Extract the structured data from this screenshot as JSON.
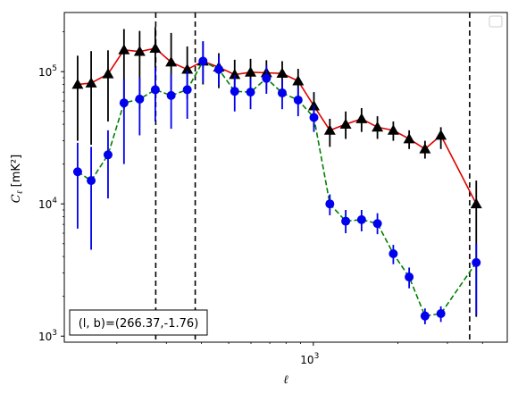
{
  "chart_data": {
    "type": "scatter",
    "x_scale": "log",
    "y_scale": "log",
    "xlim": [
      130,
      4900
    ],
    "ylim": [
      900,
      280000
    ],
    "xlabel": "ℓ",
    "ylabel_main": "C",
    "ylabel_sub": "ℓ",
    "ylabel_unit": "[mK²]",
    "x_ticks": [
      {
        "value": 1000,
        "base": "10",
        "exp": "3"
      }
    ],
    "y_ticks": [
      {
        "value": 1000,
        "base": "10",
        "exp": "3"
      },
      {
        "value": 10000,
        "base": "10",
        "exp": "4"
      },
      {
        "value": 100000,
        "base": "10",
        "exp": "5"
      }
    ],
    "grid": false,
    "legend": {
      "placement": "top-right",
      "entries": []
    },
    "annotation": "(l, b)=(266.37,-1.76)",
    "annotation_placement": "bottom-left",
    "vlines": [
      {
        "x": 275,
        "style": "dashed",
        "color": "#000000"
      },
      {
        "x": 380,
        "style": "dashed",
        "color": "#000000"
      },
      {
        "x": 3600,
        "style": "dashed",
        "color": "#000000"
      }
    ],
    "series": [
      {
        "marker": "triangle",
        "color": "#000000",
        "line_color": "#e00000",
        "line_style": "solid",
        "errorbar_color": "#000000",
        "points": [
          {
            "x": 145,
            "y": 80000,
            "lo": 30000,
            "hi": 132000
          },
          {
            "x": 162,
            "y": 82000,
            "lo": 28000,
            "hi": 143000
          },
          {
            "x": 186,
            "y": 96000,
            "lo": 42000,
            "hi": 145000
          },
          {
            "x": 212,
            "y": 146000,
            "lo": 52000,
            "hi": 210000
          },
          {
            "x": 241,
            "y": 142000,
            "lo": 52000,
            "hi": 203000
          },
          {
            "x": 274,
            "y": 150000,
            "lo": 60000,
            "hi": 218000
          },
          {
            "x": 312,
            "y": 118000,
            "lo": 62000,
            "hi": 196000
          },
          {
            "x": 356,
            "y": 104000,
            "lo": 62000,
            "hi": 155000
          },
          {
            "x": 405,
            "y": 120000,
            "lo": 80000,
            "hi": 168000
          },
          {
            "x": 461,
            "y": 108000,
            "lo": 75000,
            "hi": 138000
          },
          {
            "x": 525,
            "y": 95000,
            "lo": 66000,
            "hi": 123000
          },
          {
            "x": 598,
            "y": 99000,
            "lo": 70000,
            "hi": 125000
          },
          {
            "x": 681,
            "y": 98000,
            "lo": 73000,
            "hi": 122000
          },
          {
            "x": 775,
            "y": 97000,
            "lo": 72000,
            "hi": 120000
          },
          {
            "x": 883,
            "y": 85000,
            "lo": 63000,
            "hi": 105000
          },
          {
            "x": 1005,
            "y": 55000,
            "lo": 38000,
            "hi": 70000
          },
          {
            "x": 1145,
            "y": 36000,
            "lo": 27000,
            "hi": 44000
          },
          {
            "x": 1304,
            "y": 40000,
            "lo": 31000,
            "hi": 50000
          },
          {
            "x": 1485,
            "y": 44000,
            "lo": 35000,
            "hi": 53000
          },
          {
            "x": 1691,
            "y": 38000,
            "lo": 31000,
            "hi": 46000
          },
          {
            "x": 1926,
            "y": 36000,
            "lo": 30000,
            "hi": 42000
          },
          {
            "x": 2193,
            "y": 31000,
            "lo": 26000,
            "hi": 36000
          },
          {
            "x": 2497,
            "y": 26000,
            "lo": 22000,
            "hi": 30000
          },
          {
            "x": 2844,
            "y": 33000,
            "lo": 26000,
            "hi": 38000
          },
          {
            "x": 3800,
            "y": 10000,
            "lo": 1400,
            "hi": 15000
          }
        ]
      },
      {
        "marker": "circle",
        "color": "#0000ee",
        "line_color": "#008000",
        "line_style": "dashed",
        "errorbar_color": "#0000ee",
        "points": [
          {
            "x": 145,
            "y": 17500,
            "lo": 6500,
            "hi": 29000
          },
          {
            "x": 162,
            "y": 15000,
            "lo": 4500,
            "hi": 27000
          },
          {
            "x": 186,
            "y": 23500,
            "lo": 11000,
            "hi": 36000
          },
          {
            "x": 212,
            "y": 58000,
            "lo": 20000,
            "hi": 88000
          },
          {
            "x": 241,
            "y": 62000,
            "lo": 33000,
            "hi": 90000
          },
          {
            "x": 274,
            "y": 73000,
            "lo": 42000,
            "hi": 108000
          },
          {
            "x": 312,
            "y": 66000,
            "lo": 37000,
            "hi": 96000
          },
          {
            "x": 356,
            "y": 73000,
            "lo": 44000,
            "hi": 102000
          },
          {
            "x": 405,
            "y": 120000,
            "lo": 83000,
            "hi": 170000
          },
          {
            "x": 461,
            "y": 104000,
            "lo": 78000,
            "hi": 132000
          },
          {
            "x": 525,
            "y": 71000,
            "lo": 50000,
            "hi": 94000
          },
          {
            "x": 598,
            "y": 70000,
            "lo": 52000,
            "hi": 90000
          },
          {
            "x": 681,
            "y": 89000,
            "lo": 68000,
            "hi": 112000
          },
          {
            "x": 775,
            "y": 69000,
            "lo": 52000,
            "hi": 88000
          },
          {
            "x": 883,
            "y": 61000,
            "lo": 46000,
            "hi": 76000
          },
          {
            "x": 1005,
            "y": 45000,
            "lo": 35000,
            "hi": 56000
          },
          {
            "x": 1145,
            "y": 10000,
            "lo": 8200,
            "hi": 11800
          },
          {
            "x": 1304,
            "y": 7400,
            "lo": 6000,
            "hi": 9000
          },
          {
            "x": 1485,
            "y": 7600,
            "lo": 6200,
            "hi": 9000
          },
          {
            "x": 1691,
            "y": 7100,
            "lo": 5900,
            "hi": 8500
          },
          {
            "x": 1926,
            "y": 4200,
            "lo": 3500,
            "hi": 4900
          },
          {
            "x": 2193,
            "y": 2800,
            "lo": 2300,
            "hi": 3300
          },
          {
            "x": 2497,
            "y": 1420,
            "lo": 1230,
            "hi": 1620
          },
          {
            "x": 2844,
            "y": 1480,
            "lo": 1280,
            "hi": 1680
          },
          {
            "x": 3800,
            "y": 3600,
            "lo": 1450,
            "hi": 5000
          }
        ]
      }
    ]
  }
}
